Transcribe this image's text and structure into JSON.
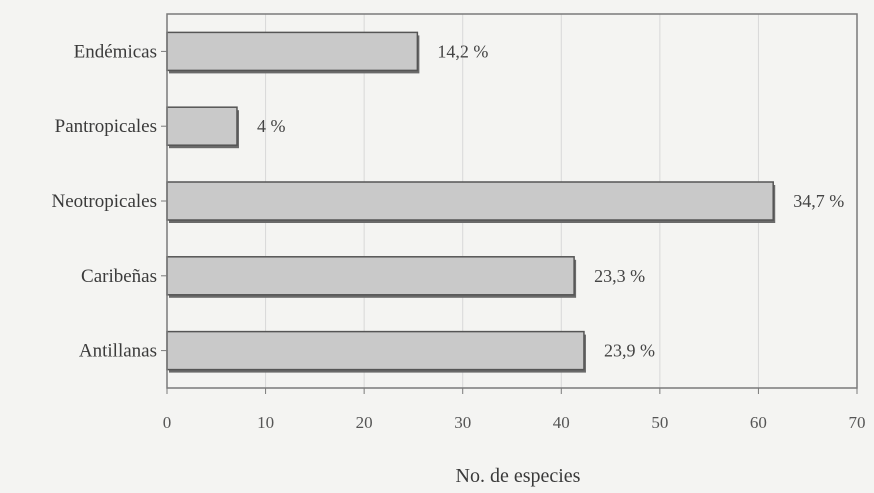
{
  "chart_data": {
    "type": "bar",
    "orientation": "horizontal",
    "categories": [
      "Endémicas",
      "Pantropicales",
      "Neotropicales",
      "Caribeñas",
      "Antillanas"
    ],
    "values": [
      25.4,
      7.1,
      61.5,
      41.3,
      42.3
    ],
    "data_labels": [
      "14,2 %",
      "4 %",
      "34,7 %",
      "23,3 %",
      "23,9 %"
    ],
    "xlabel": "No. de especies",
    "ylabel": "",
    "title": "",
    "xlim": [
      0,
      70
    ],
    "xticks": [
      "0",
      "10",
      "20",
      "30",
      "40",
      "50",
      "60",
      "70"
    ],
    "grid": "vertical",
    "legend": "none",
    "colors": {
      "bar_fill": "#c9c9c9",
      "bar_stroke": "#555555",
      "grid": "#d8d8d8",
      "frame": "#7a7a7a"
    }
  }
}
